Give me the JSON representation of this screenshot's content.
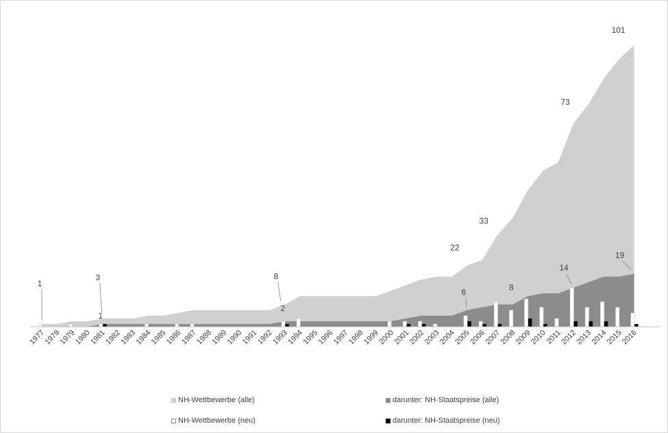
{
  "chart_data": {
    "type": "area",
    "title": "",
    "xlabel": "",
    "ylabel": "",
    "ylim": [
      0,
      101
    ],
    "grid": false,
    "legend_position": "bottom",
    "categories": [
      "1977",
      "1978",
      "1979",
      "1980",
      "1981",
      "1982",
      "1983",
      "1984",
      "1985",
      "1986",
      "1987",
      "1988",
      "1989",
      "1990",
      "1991",
      "1992",
      "1993",
      "1994",
      "1995",
      "1996",
      "1997",
      "1998",
      "1999",
      "2000",
      "2001",
      "2002",
      "2003",
      "2004",
      "2005",
      "2006",
      "2007",
      "2008",
      "2009",
      "2010",
      "2011",
      "2012",
      "2013",
      "2014",
      "2015",
      "2016"
    ],
    "series": [
      {
        "name": "NH-Wettbewerbe (alle)",
        "kind": "area",
        "color": "#d0d0d0",
        "values": [
          1,
          1,
          2,
          2,
          3,
          3,
          3,
          4,
          4,
          5,
          6,
          6,
          6,
          6,
          6,
          6,
          8,
          11,
          11,
          11,
          11,
          11,
          11,
          13,
          15,
          17,
          18,
          18,
          22,
          24,
          33,
          39,
          49,
          56,
          59,
          73,
          80,
          89,
          96,
          101
        ]
      },
      {
        "name": "darunter: NH-Staatspreise (alle)",
        "kind": "area",
        "color": "#8c8c8c",
        "values": [
          0,
          0,
          0,
          0,
          1,
          1,
          1,
          1,
          1,
          1,
          1,
          1,
          1,
          1,
          1,
          1,
          2,
          2,
          2,
          2,
          2,
          2,
          2,
          2,
          3,
          4,
          4,
          4,
          6,
          7,
          8,
          8,
          11,
          12,
          12,
          14,
          16,
          18,
          18,
          19
        ]
      },
      {
        "name": "NH-Wettbewerbe (neu)",
        "kind": "bar",
        "color": "#ffffff",
        "values": [
          1,
          0,
          1,
          0,
          1,
          0,
          0,
          1,
          0,
          1,
          1,
          0,
          0,
          0,
          0,
          0,
          2,
          3,
          0,
          0,
          0,
          0,
          0,
          2,
          2,
          2,
          1,
          0,
          4,
          2,
          9,
          6,
          10,
          7,
          3,
          14,
          7,
          9,
          7,
          5
        ]
      },
      {
        "name": "darunter: NH-Staatspreise (neu)",
        "kind": "bar",
        "color": "#000000",
        "values": [
          0,
          0,
          0,
          0,
          1,
          0,
          0,
          0,
          0,
          0,
          0,
          0,
          0,
          0,
          0,
          0,
          1,
          0,
          0,
          0,
          0,
          0,
          0,
          0,
          1,
          1,
          0,
          0,
          2,
          1,
          1,
          0,
          3,
          1,
          0,
          2,
          2,
          2,
          0,
          1
        ]
      }
    ],
    "annotations": [
      {
        "text": "1",
        "series": 0,
        "category": "1977"
      },
      {
        "text": "3",
        "series": 0,
        "category": "1981"
      },
      {
        "text": "1",
        "series": 1,
        "category": "1981"
      },
      {
        "text": "8",
        "series": 0,
        "category": "1993"
      },
      {
        "text": "2",
        "series": 1,
        "category": "1993"
      },
      {
        "text": "22",
        "series": 0,
        "category": "2005"
      },
      {
        "text": "6",
        "series": 1,
        "category": "2005"
      },
      {
        "text": "33",
        "series": 0,
        "category": "2007"
      },
      {
        "text": "8",
        "series": 1,
        "category": "2008"
      },
      {
        "text": "14",
        "series": 1,
        "category": "2012"
      },
      {
        "text": "73",
        "series": 0,
        "category": "2012"
      },
      {
        "text": "101",
        "series": 0,
        "category": "2016"
      },
      {
        "text": "19",
        "series": 1,
        "category": "2016"
      }
    ]
  }
}
